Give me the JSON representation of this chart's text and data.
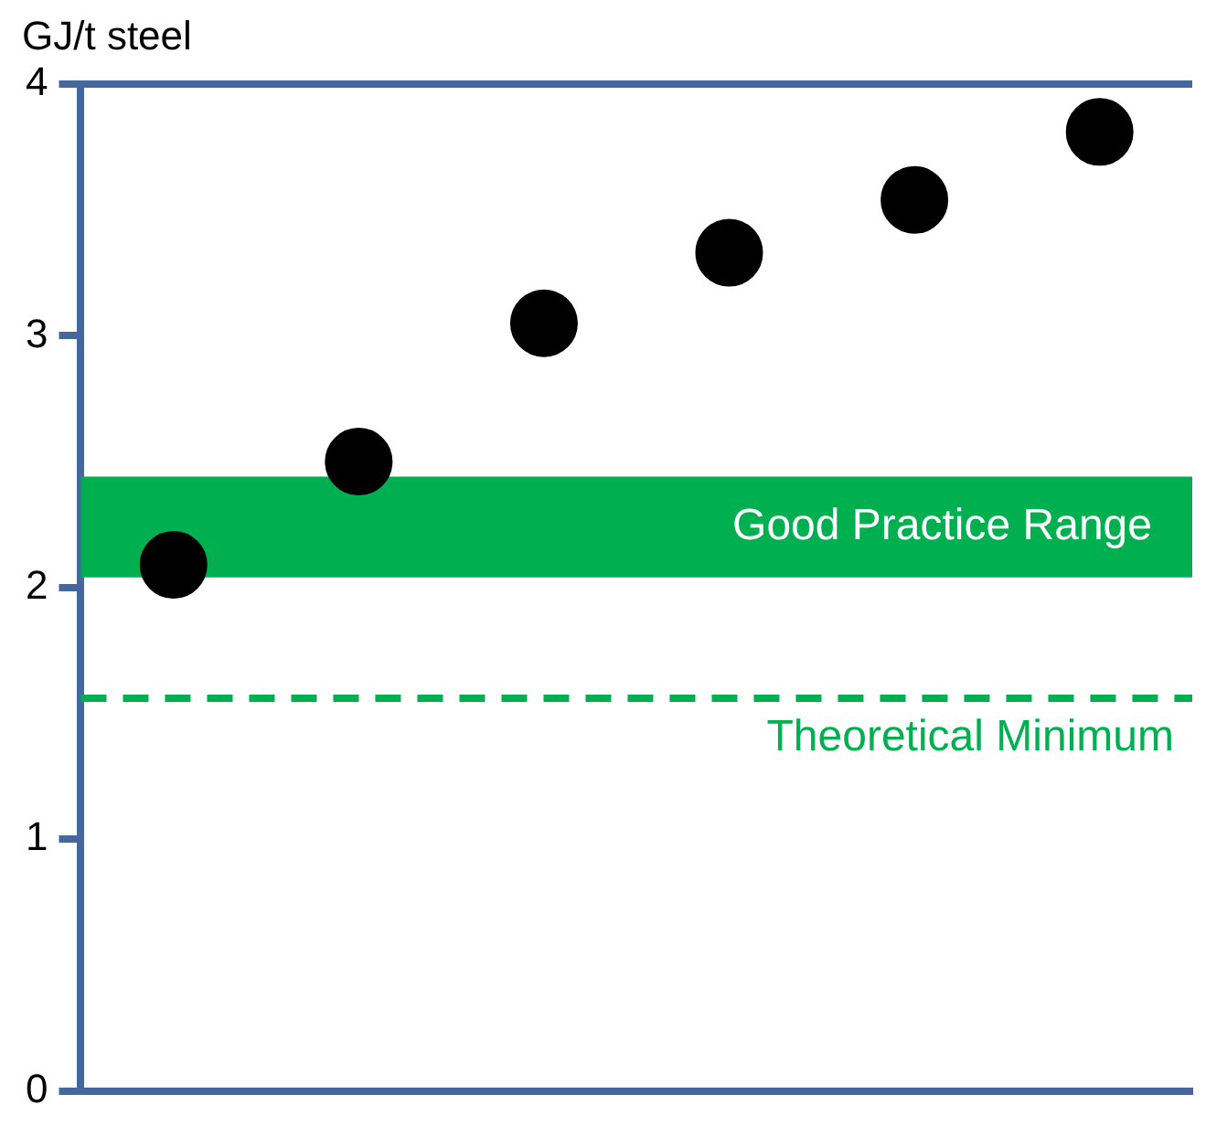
{
  "chart_data": {
    "type": "scatter",
    "ylabel": "GJ/t steel",
    "categories": [
      null,
      null,
      null,
      null,
      null,
      null
    ],
    "series": [
      {
        "color": "#000000",
        "values": [
          2.09,
          2.5,
          3.05,
          3.33,
          3.54,
          3.81
        ]
      }
    ],
    "ylim": [
      0,
      4
    ],
    "yticks": [
      0,
      1,
      2,
      3,
      4
    ],
    "grid": false,
    "legend": false,
    "marker": "circle",
    "tick_labels": "y",
    "bands": [
      {
        "axis": "y",
        "from": 2.04,
        "to": 2.44,
        "label": "Good Practice Range",
        "color": "#00b050"
      }
    ],
    "ref_lines": [
      {
        "axis": "y",
        "value": 1.56,
        "label": "Theoretical Minimum",
        "color": "#00b050",
        "line_style": "dashed"
      }
    ]
  }
}
